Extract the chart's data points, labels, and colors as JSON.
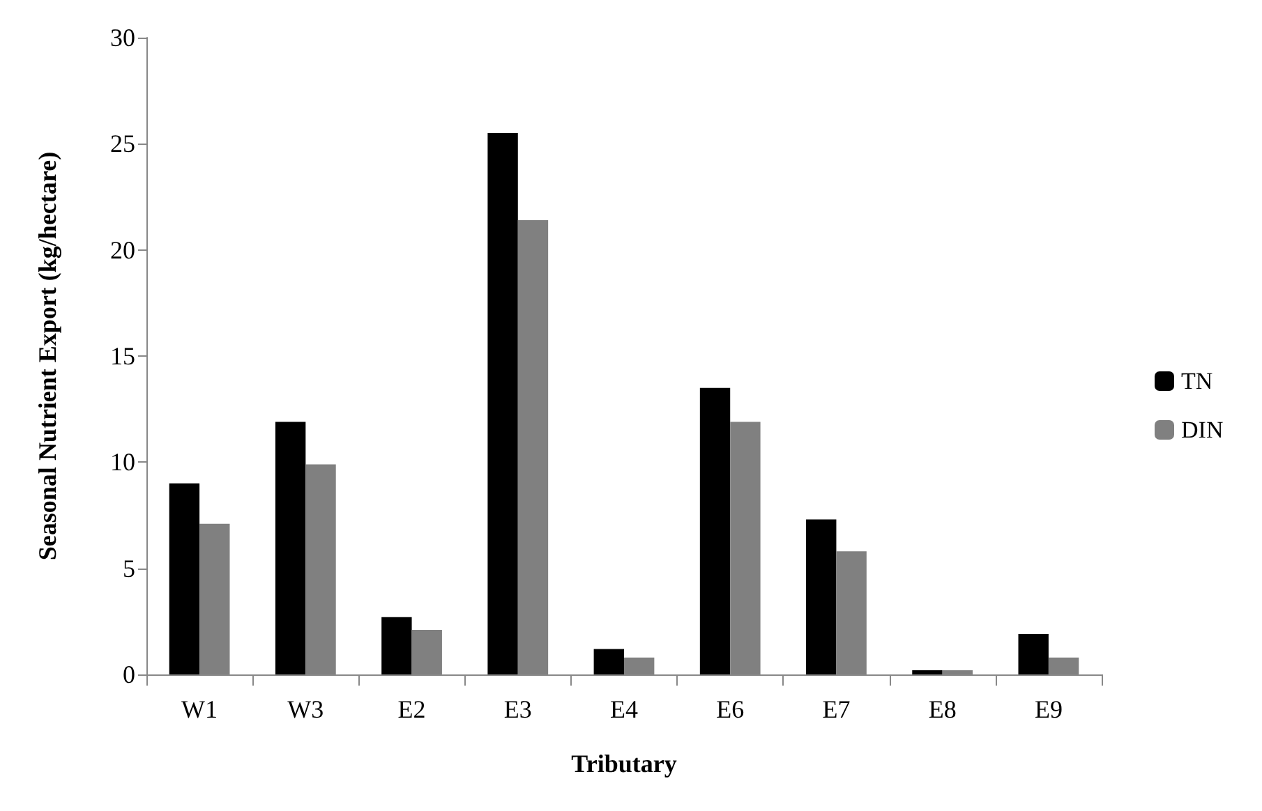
{
  "chart_data": {
    "type": "bar",
    "xlabel": "Tributary",
    "ylabel": "Seasonal Nutrient Export (kg/hectare)",
    "categories": [
      "W1",
      "W3",
      "E2",
      "E3",
      "E4",
      "E6",
      "E7",
      "E8",
      "E9"
    ],
    "series": [
      {
        "name": "TN",
        "color": "#000000",
        "values": [
          9.0,
          11.9,
          2.7,
          25.5,
          1.2,
          13.5,
          7.3,
          0.2,
          1.9
        ]
      },
      {
        "name": "DIN",
        "color": "#808080",
        "values": [
          7.1,
          9.9,
          2.1,
          21.4,
          0.8,
          11.9,
          5.8,
          0.2,
          0.8
        ]
      }
    ],
    "ylim": [
      0,
      30
    ],
    "yticks": [
      0,
      5,
      10,
      15,
      20,
      25,
      30
    ],
    "grid": false,
    "legend": "right"
  }
}
